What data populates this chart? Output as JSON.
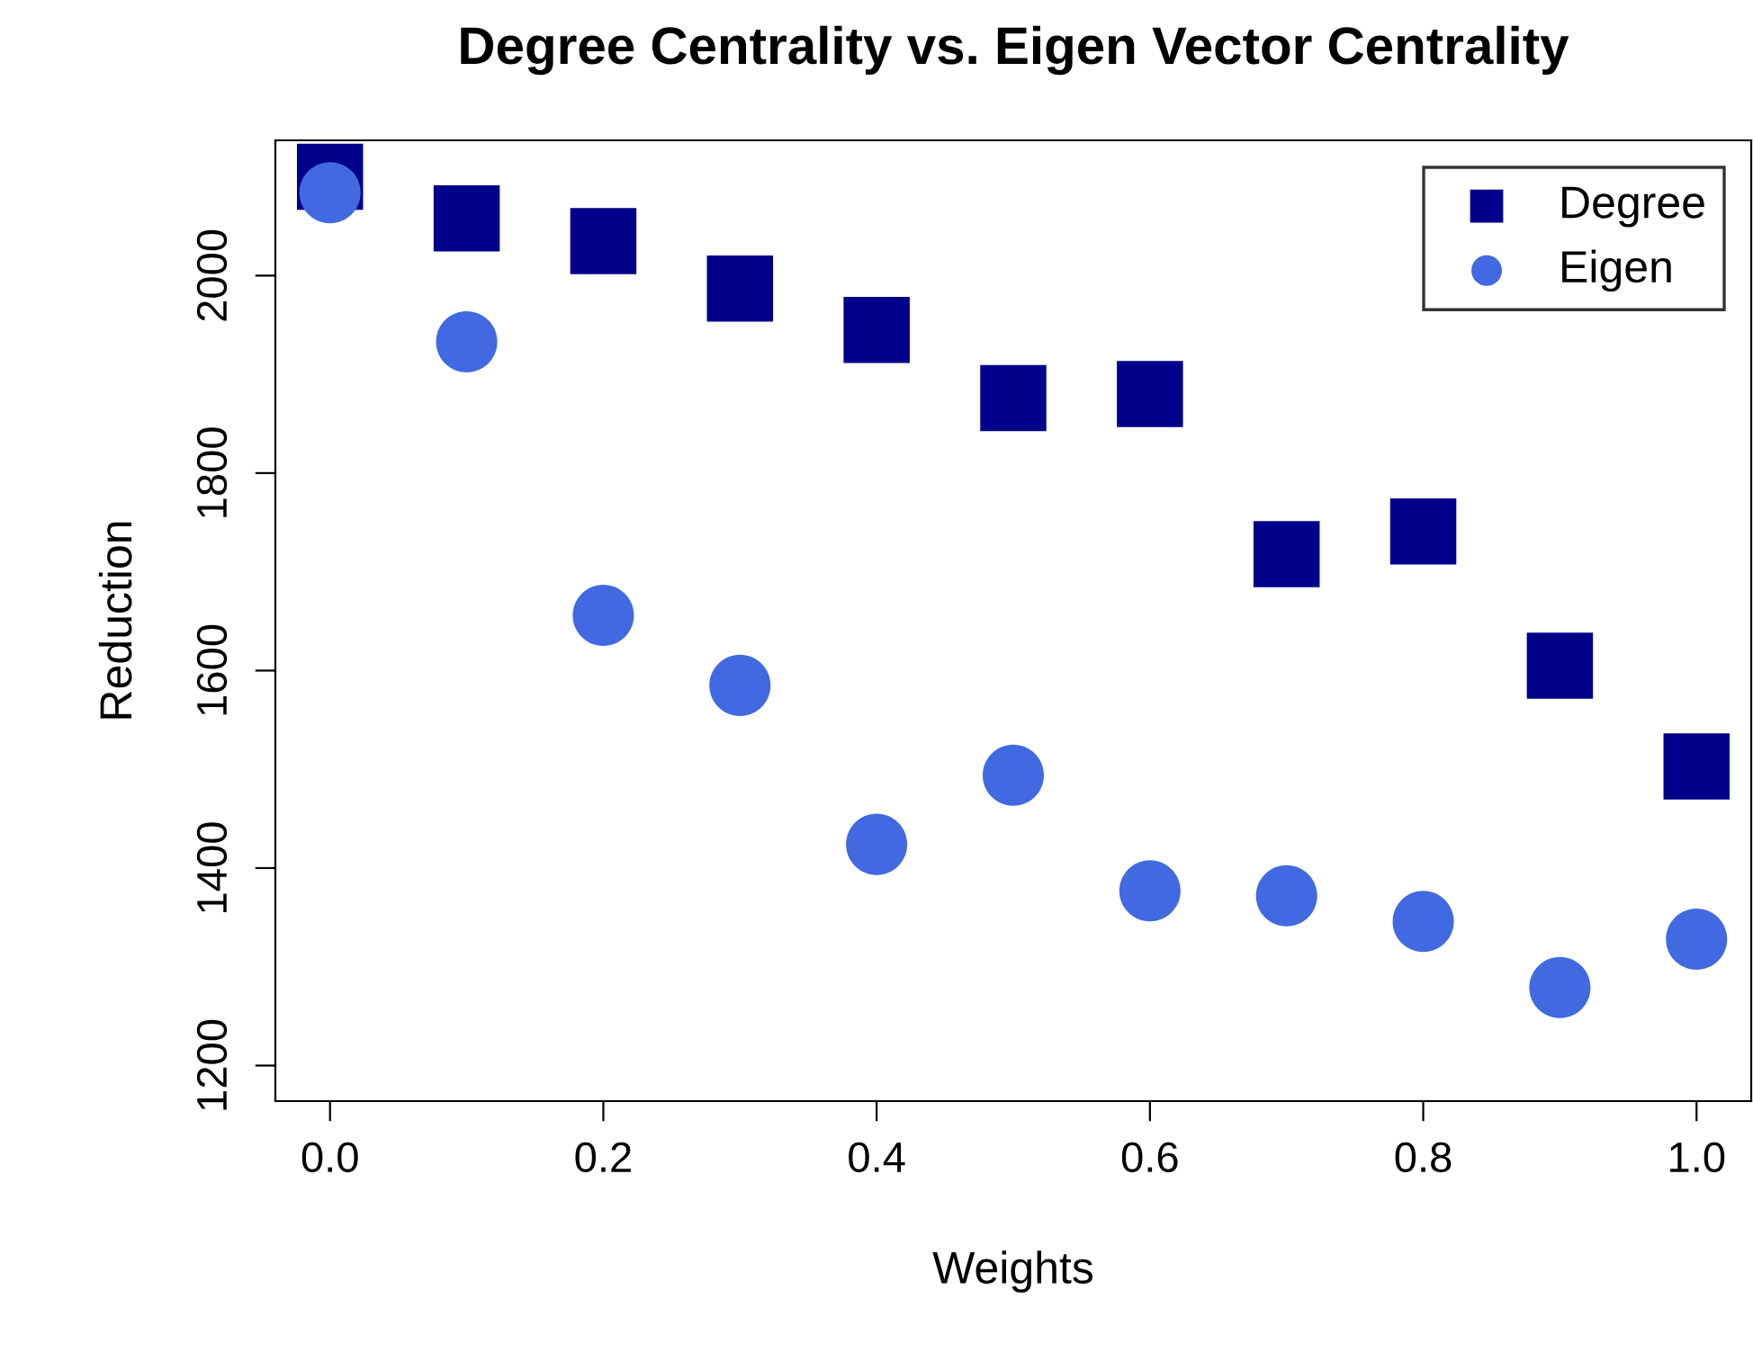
{
  "chart_data": {
    "type": "scatter",
    "title": "Degree Centrality vs. Eigen Vector Centrality",
    "xlabel": "Weights",
    "ylabel": "Reduction",
    "x": [
      0.0,
      0.1,
      0.2,
      0.3,
      0.4,
      0.5,
      0.6,
      0.7,
      0.8,
      0.9,
      1.0
    ],
    "series": [
      {
        "name": "Degree",
        "color": "#00008b",
        "marker": "square",
        "values": [
          2100,
          2058,
          2035,
          1987,
          1945,
          1876,
          1880,
          1718,
          1741,
          1605,
          1503
        ]
      },
      {
        "name": "Eigen",
        "color": "#4169e1",
        "marker": "circle",
        "values": [
          2084,
          1933,
          1656,
          1585,
          1424,
          1494,
          1377,
          1372,
          1346,
          1279,
          1328
        ]
      }
    ],
    "xlim": [
      -0.04,
      1.04
    ],
    "ylim": [
      1164,
      2137
    ],
    "xticks": [
      {
        "value": 0,
        "label": "0.0"
      },
      0.2,
      0.4,
      0.6,
      0.8,
      {
        "value": 1,
        "label": "1.0"
      }
    ],
    "yticks": [
      1200,
      1400,
      1600,
      1800,
      2000
    ],
    "grid": false,
    "legend": "top right"
  }
}
